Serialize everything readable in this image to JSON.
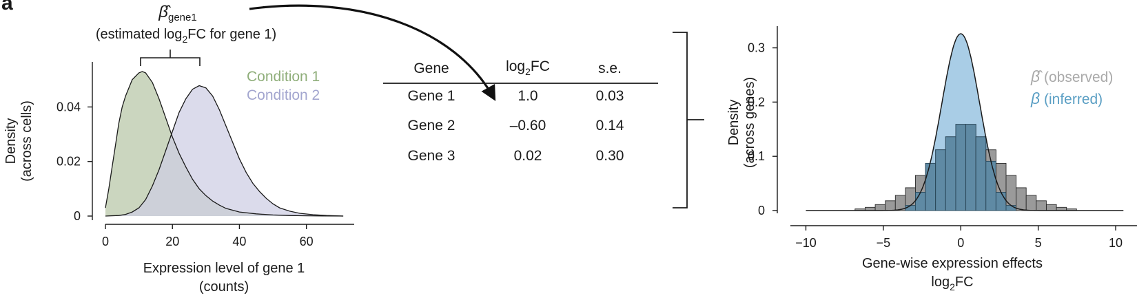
{
  "panel_label": "a",
  "annotation": {
    "beta_symbol": "β̂",
    "beta_subscript": "gene1",
    "line2_before": "(estimated log",
    "line2_sub": "2",
    "line2_after": "FC for gene 1)"
  },
  "table": {
    "headers": {
      "gene": "Gene",
      "log2fc_base": "log",
      "log2fc_sub": "2",
      "log2fc_suffix": "FC",
      "se": "s.e."
    },
    "rows": [
      {
        "gene": "Gene 1",
        "log2fc": "1.0",
        "se": "0.03"
      },
      {
        "gene": "Gene 2",
        "log2fc": "–0.60",
        "se": "0.14"
      },
      {
        "gene": "Gene 3",
        "log2fc": "0.02",
        "se": "0.30"
      }
    ]
  },
  "colors": {
    "condition1": "#8fae7a",
    "condition1_fill": "#cbd6bf",
    "condition2": "#a3a6cf",
    "condition2_fill": "#cdcde3",
    "observed_fill": "#9a9a9a",
    "observed_legend": "#aaaaaa",
    "inferred_fill": "#a9cde6",
    "inferred_legend": "#5b9fc4",
    "overlap_fill": "#5f8aa4"
  },
  "chart_data": [
    {
      "type": "area",
      "xlabel_line1": "Expression level of gene 1",
      "xlabel_line2": "(counts)",
      "ylabel_line1": "Density",
      "ylabel_line2": "(across cells)",
      "xlim": [
        0,
        72
      ],
      "ylim": [
        0,
        0.055
      ],
      "xticks": [
        0,
        20,
        40,
        60
      ],
      "yticks": [
        0,
        0.02,
        0.04
      ],
      "ytick_labels": [
        "0",
        "0.02",
        "0.04"
      ],
      "legend_position": "top-right",
      "series": [
        {
          "name": "Condition 1",
          "x": [
            0,
            1,
            2,
            3,
            4,
            5,
            6,
            8,
            10,
            11,
            12,
            14,
            16,
            18,
            20,
            22,
            24,
            26,
            28,
            30,
            32,
            34,
            36,
            40,
            45,
            50,
            55,
            60,
            65,
            71
          ],
          "y": [
            0.003,
            0.01,
            0.018,
            0.026,
            0.034,
            0.04,
            0.044,
            0.05,
            0.0525,
            0.053,
            0.0525,
            0.049,
            0.043,
            0.036,
            0.029,
            0.023,
            0.018,
            0.0135,
            0.01,
            0.0075,
            0.0055,
            0.004,
            0.0028,
            0.0015,
            0.0008,
            0.0004,
            0.0002,
            0.0001,
            5e-05,
            0
          ]
        },
        {
          "name": "Condition 2",
          "x": [
            0,
            4,
            6,
            8,
            10,
            12,
            14,
            16,
            18,
            20,
            22,
            24,
            26,
            28,
            30,
            32,
            34,
            36,
            38,
            40,
            42,
            44,
            46,
            48,
            50,
            52,
            55,
            58,
            62,
            66,
            71
          ],
          "y": [
            0,
            0.0002,
            0.0006,
            0.0015,
            0.003,
            0.006,
            0.011,
            0.017,
            0.024,
            0.031,
            0.038,
            0.043,
            0.0465,
            0.0478,
            0.047,
            0.044,
            0.039,
            0.033,
            0.027,
            0.021,
            0.016,
            0.012,
            0.009,
            0.0065,
            0.0045,
            0.003,
            0.0018,
            0.001,
            0.0005,
            0.0002,
            0
          ]
        }
      ]
    },
    {
      "type": "bar",
      "xlabel_line1": "Gene-wise expression effects",
      "xlabel_line2_base": "log",
      "xlabel_line2_sub": "2",
      "xlabel_line2_suffix": "FC",
      "ylabel_line1": "Density",
      "ylabel_line2": "(across genes)",
      "xlim": [
        -11,
        12
      ],
      "ylim": [
        0,
        0.34
      ],
      "xticks": [
        -10,
        -5,
        0,
        5,
        10
      ],
      "xtick_labels": [
        "−10",
        "−5",
        "0",
        "5",
        "10"
      ],
      "yticks": [
        0,
        0.1,
        0.2,
        0.3
      ],
      "ytick_labels": [
        "0",
        "0.1",
        "0.2",
        "0.3"
      ],
      "legend_position": "top-right",
      "legend": [
        {
          "symbol": "β̂",
          "text": " (observed)"
        },
        {
          "symbol": "β",
          "text": " (inferred)"
        }
      ],
      "histogram": {
        "bin_width": 0.65,
        "bin_starts": [
          -6.825,
          -6.175,
          -5.525,
          -4.875,
          -4.225,
          -3.575,
          -2.925,
          -2.275,
          -1.625,
          -0.975,
          -0.325,
          0.325,
          0.975,
          1.625,
          2.275,
          2.925,
          3.575,
          4.225,
          4.875,
          5.525,
          6.175,
          6.825
        ],
        "values": [
          0.003,
          0.006,
          0.011,
          0.018,
          0.028,
          0.042,
          0.065,
          0.087,
          0.112,
          0.136,
          0.159,
          0.159,
          0.136,
          0.112,
          0.087,
          0.065,
          0.042,
          0.028,
          0.018,
          0.011,
          0.006,
          0.003
        ]
      },
      "inferred_density": {
        "mean": 0,
        "sd": 1.22,
        "peak": 0.326,
        "x_range": [
          -10,
          10.5
        ]
      }
    }
  ]
}
